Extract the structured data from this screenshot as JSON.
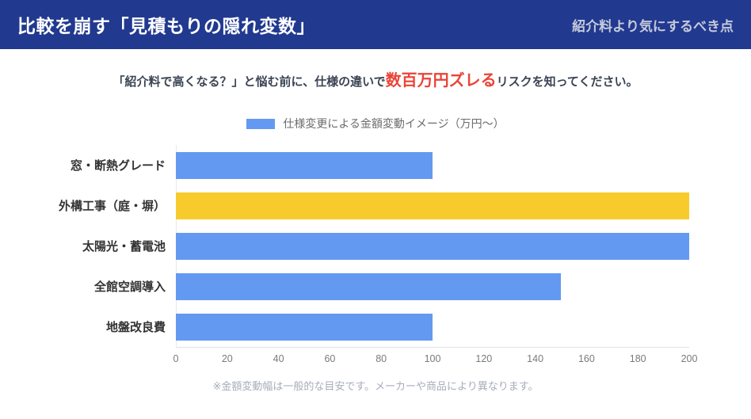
{
  "header": {
    "title": "比較を崩す「見積もりの隠れ変数」",
    "right_note": "紹介料より気にするべき点"
  },
  "subtitle": {
    "prefix": "「紹介料で高くなる？」と悩む前に、仕様の違いで",
    "highlight": "数百万円ズレる",
    "suffix": "リスクを知ってください。"
  },
  "legend": {
    "label": "仕様変更による金額変動イメージ（万円〜）",
    "swatch_color": "#6499F2"
  },
  "chart_data": {
    "type": "bar",
    "orientation": "horizontal",
    "title": "",
    "series_label": "仕様変更による金額変動イメージ（万円〜）",
    "categories": [
      "窓・断熱グレード",
      "外構工事（庭・塀）",
      "太陽光・蓄電池",
      "全館空調導入",
      "地盤改良費"
    ],
    "values": [
      100,
      200,
      200,
      150,
      100
    ],
    "bar_colors": [
      "#6499F2",
      "#F8CB2D",
      "#6499F2",
      "#6499F2",
      "#6499F2"
    ],
    "highlight_category": "外構工事（庭・塀）",
    "xlabel": "",
    "ylabel": "",
    "xlim": [
      0,
      200
    ],
    "x_ticks": [
      0,
      20,
      40,
      60,
      80,
      100,
      120,
      140,
      160,
      180,
      200
    ],
    "grid": false,
    "legend_position": "top"
  },
  "footer": {
    "note": "※金額変動幅は一般的な目安です。メーカーや商品により異なります。"
  },
  "colors": {
    "header_bg": "#21398F",
    "accent_red": "#EA4336",
    "bar_blue": "#6499F2",
    "bar_yellow": "#F8CB2D",
    "axis_line": "#E2E2E6",
    "tick_label": "#7A7A7A"
  }
}
